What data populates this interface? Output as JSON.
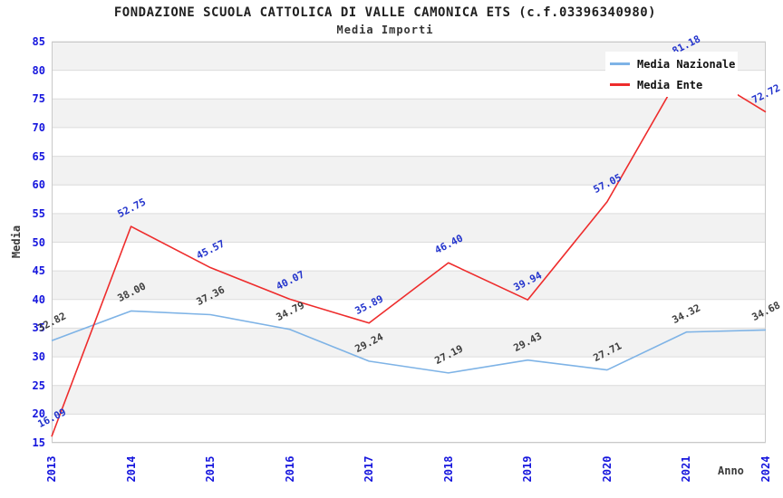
{
  "chart_data": {
    "type": "line",
    "title": "FONDAZIONE SCUOLA CATTOLICA DI VALLE CAMONICA ETS (c.f.03396340980)",
    "subtitle": "Media Importi",
    "xlabel": "Anno",
    "ylabel": "Media",
    "ylim": [
      15,
      85
    ],
    "yticks": [
      15,
      20,
      25,
      30,
      35,
      40,
      45,
      50,
      55,
      60,
      65,
      70,
      75,
      80,
      85
    ],
    "categories": [
      "2013",
      "2014",
      "2015",
      "2016",
      "2017",
      "2018",
      "2019",
      "2020",
      "2021",
      "2024"
    ],
    "series": [
      {
        "name": "Media Nazionale",
        "line_color": "#7eb3e6",
        "label_color": "#3d3d3d",
        "values": [
          32.82,
          38.0,
          37.36,
          34.79,
          29.24,
          27.19,
          29.43,
          27.71,
          34.32,
          34.68
        ]
      },
      {
        "name": "Media Ente",
        "line_color": "#ee2c2c",
        "label_color": "#2233cc",
        "values": [
          16.09,
          52.75,
          45.57,
          40.07,
          35.89,
          46.4,
          39.94,
          57.05,
          81.18,
          72.72
        ]
      }
    ],
    "legend_position": "top-right",
    "grid": "alternating-horizontal-bands",
    "colors": {
      "axis_tick": "#1515dd",
      "axis_title": "#3a3a3a",
      "band_gray": "#f2f2f2",
      "grid_line": "#dcdcdc",
      "plot_border": "#c9c9c9"
    }
  }
}
